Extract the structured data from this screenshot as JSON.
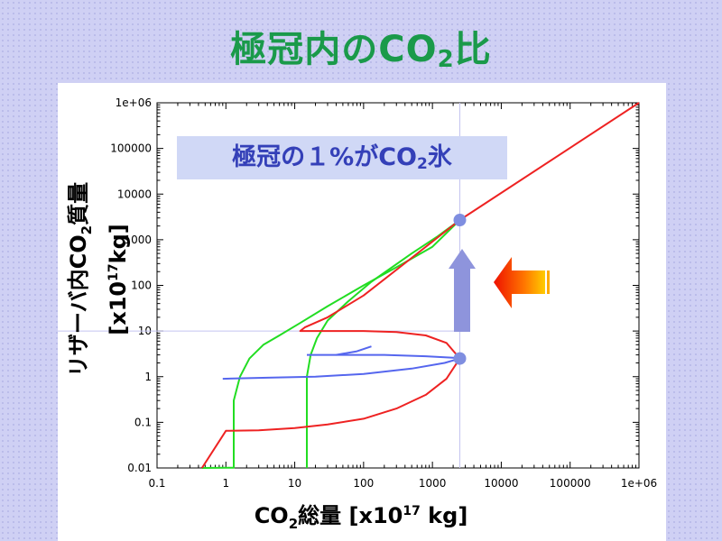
{
  "title": {
    "pre": "極冠内のCO",
    "sub": "2",
    "post": "比"
  },
  "callout": {
    "pre": "極冠の１%がCO",
    "sub": "2",
    "post": "氷"
  },
  "y_axis_label": {
    "line1_pre": "リザーバ内CO",
    "line1_sub": "2",
    "line1_post": "質量",
    "line2_pre": "[x10",
    "line2_sup": "17",
    "line2_post": "kg]"
  },
  "x_axis_label": {
    "pre": "CO",
    "sub": "2",
    "mid": "総量 [x10",
    "sup": "17",
    "post": " kg]"
  },
  "colors": {
    "green": "#22dd22",
    "red": "#ee2222",
    "blue": "#5566ee",
    "title": "#1a9a4a",
    "callout_text": "#3440b8",
    "marker": "#7f8ee0",
    "arrow": "#8e94dc"
  },
  "chart_data": {
    "type": "line",
    "x_scale": "log",
    "y_scale": "log",
    "xlim": [
      0.1,
      1000000
    ],
    "ylim": [
      0.01,
      1000000
    ],
    "x_ticks": [
      "0.1",
      "1",
      "10",
      "100",
      "1000",
      "10000",
      "100000",
      "1e+06"
    ],
    "y_ticks": [
      "0.01",
      "0.1",
      "1",
      "10",
      "100",
      "1000",
      "10000",
      "100000",
      "1e+06"
    ],
    "grid": false,
    "series": [
      {
        "color": "green",
        "points": [
          [
            0.45,
            0.01
          ],
          [
            1.0,
            0.0101
          ],
          [
            1.3,
            0.0101
          ],
          [
            1.3,
            0.3
          ],
          [
            1.6,
            1.0
          ],
          [
            2.2,
            2.5
          ],
          [
            3.5,
            5.0
          ],
          [
            6.0,
            8.0
          ],
          [
            12,
            15
          ],
          [
            30,
            35
          ],
          [
            100,
            100
          ],
          [
            300,
            250
          ],
          [
            1000,
            700
          ],
          [
            2500,
            2700
          ]
        ]
      },
      {
        "color": "green",
        "points": [
          [
            15,
            0.01
          ],
          [
            15,
            1.0
          ],
          [
            17,
            3.0
          ],
          [
            21,
            7.0
          ],
          [
            30,
            17
          ],
          [
            60,
            45
          ],
          [
            130,
            120
          ],
          [
            500,
            500
          ],
          [
            1200,
            1200
          ],
          [
            2500,
            2700
          ]
        ]
      },
      {
        "color": "red",
        "points": [
          [
            0.45,
            0.01
          ],
          [
            1.0,
            0.065
          ],
          [
            3.0,
            0.067
          ],
          [
            10,
            0.075
          ],
          [
            30,
            0.09
          ],
          [
            100,
            0.12
          ],
          [
            300,
            0.2
          ],
          [
            800,
            0.4
          ],
          [
            1600,
            0.9
          ],
          [
            2500,
            2.5
          ],
          [
            1600,
            5.5
          ],
          [
            800,
            8.0
          ],
          [
            300,
            9.5
          ],
          [
            100,
            10
          ],
          [
            12,
            10
          ],
          [
            14,
            12
          ],
          [
            30,
            20
          ],
          [
            100,
            60
          ],
          [
            500,
            400
          ],
          [
            2500,
            2700
          ],
          [
            1000000,
            1000000
          ]
        ]
      },
      {
        "color": "blue",
        "points": [
          [
            0.9,
            0.9
          ],
          [
            4,
            0.95
          ],
          [
            20,
            1.0
          ],
          [
            100,
            1.15
          ],
          [
            500,
            1.5
          ],
          [
            1500,
            2.0
          ],
          [
            2500,
            2.5
          ]
        ]
      },
      {
        "color": "blue",
        "points": [
          [
            15,
            3.0
          ],
          [
            200,
            3.0
          ],
          [
            800,
            2.8
          ],
          [
            2000,
            2.6
          ],
          [
            2500,
            2.5
          ]
        ]
      },
      {
        "color": "blue",
        "points": [
          [
            40,
            3.0
          ],
          [
            80,
            3.6
          ],
          [
            130,
            4.6
          ]
        ]
      }
    ],
    "markers": [
      [
        2500,
        2700
      ],
      [
        2500,
        2.5
      ]
    ],
    "reference_lines": {
      "horizontal_y": 10,
      "vertical_x": 2500
    }
  }
}
